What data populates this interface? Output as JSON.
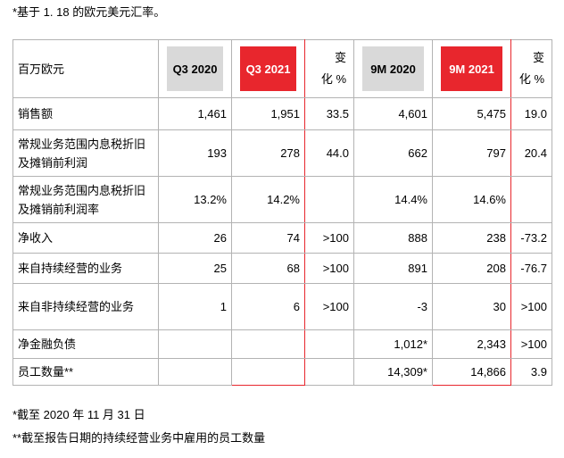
{
  "notes": {
    "top": "*基于 1. 18 的欧元美元汇率。",
    "bottom1": "*截至 2020 年 11 月 31 日",
    "bottom2": "**截至报告日期的持续经营业务中雇用的员工数量"
  },
  "table": {
    "header": {
      "label": "百万欧元",
      "q3_2020": "Q3 2020",
      "q3_2021": "Q3 2021",
      "chg1_a": "变",
      "chg1_b": "化 %",
      "m9_2020": "9M 2020",
      "m9_2021": "9M 2021",
      "chg2_a": "变",
      "chg2_b": "化 %"
    },
    "rows": [
      {
        "label": "销售额",
        "c1": "1,461",
        "c2": "1,951",
        "c3": "33.5",
        "c4": "4,601",
        "c5": "5,475",
        "c6": "19.0"
      },
      {
        "label": "常规业务范围内息税折旧及摊销前利润",
        "c1": "193",
        "c2": "278",
        "c3": "44.0",
        "c4": "662",
        "c5": "797",
        "c6": "20.4"
      },
      {
        "label": "常规业务范围内息税折旧及摊销前利润率",
        "c1": "13.2%",
        "c2": "14.2%",
        "c3": "",
        "c4": "14.4%",
        "c5": "14.6%",
        "c6": ""
      },
      {
        "label": "净收入",
        "c1": "26",
        "c2": "74",
        "c3": ">100",
        "c4": "888",
        "c5": "238",
        "c6": "-73.2"
      },
      {
        "label": "来自持续经营的业务",
        "c1": "25",
        "c2": "68",
        "c3": ">100",
        "c4": "891",
        "c5": "208",
        "c6": "-76.7"
      },
      {
        "label": "来自非持续经营的业务",
        "c1": "1",
        "c2": "6",
        "c3": ">100",
        "c4": "-3",
        "c5": "30",
        "c6": ">100"
      },
      {
        "label": "净金融负债",
        "c1": "",
        "c2": "",
        "c3": "",
        "c4": "1,012*",
        "c5": "2,343",
        "c6": ">100"
      },
      {
        "label": "员工数量**",
        "c1": "",
        "c2": "",
        "c3": "",
        "c4": "14,309*",
        "c5": "14,866",
        "c6": "3.9"
      }
    ]
  },
  "colors": {
    "accent_red": "#e8262d",
    "header_grey": "#d9d9d9",
    "grid": "#b3b3b3"
  }
}
